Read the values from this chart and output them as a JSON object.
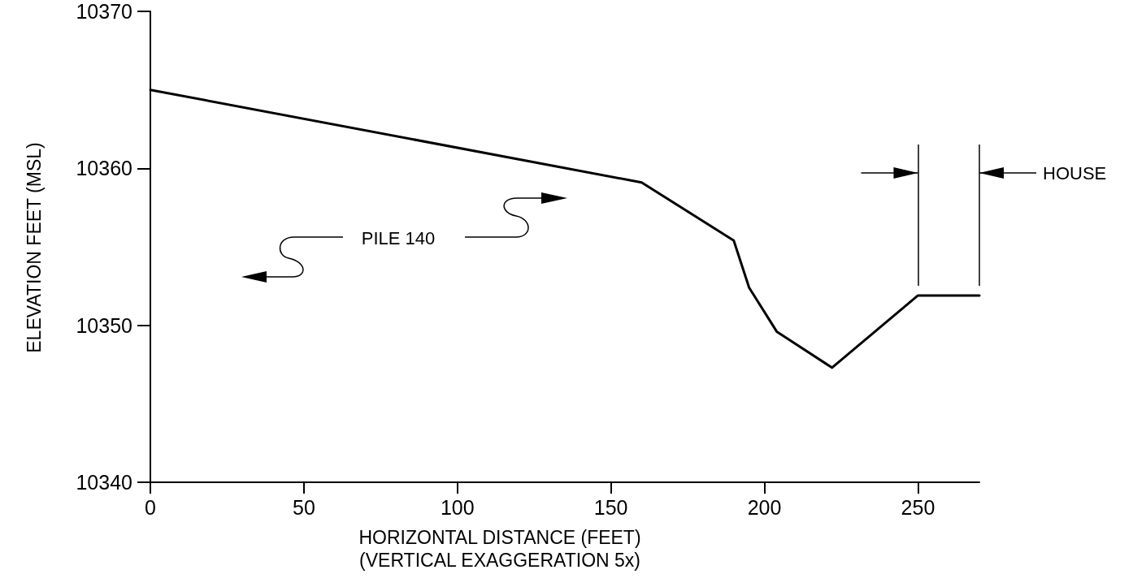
{
  "chart_data": {
    "type": "line",
    "xlabel": "HORIZONTAL DISTANCE (FEET)\n(VERTICAL EXAGGERATION 5x)",
    "ylabel": "ELEVATION FEET (MSL)",
    "x": [
      0,
      160,
      190,
      195,
      204,
      222,
      250,
      270
    ],
    "values": [
      10365,
      10359.1,
      10355.4,
      10352.4,
      10349.6,
      10347.3,
      10351.9,
      10351.9
    ],
    "color": "#000000",
    "xlim": [
      0,
      270
    ],
    "xticks": [
      0,
      50,
      100,
      150,
      200,
      250
    ],
    "ylim": [
      10340,
      10370
    ],
    "yticks": [
      10340,
      10350,
      10360,
      10370
    ],
    "marker": "none",
    "line_style": "solid",
    "ref_lines": [
      {
        "axis": "x",
        "value": 250
      },
      {
        "axis": "x",
        "value": 270,
        "label": "HOUSE"
      }
    ],
    "annotations": [
      "PILE 140"
    ]
  }
}
